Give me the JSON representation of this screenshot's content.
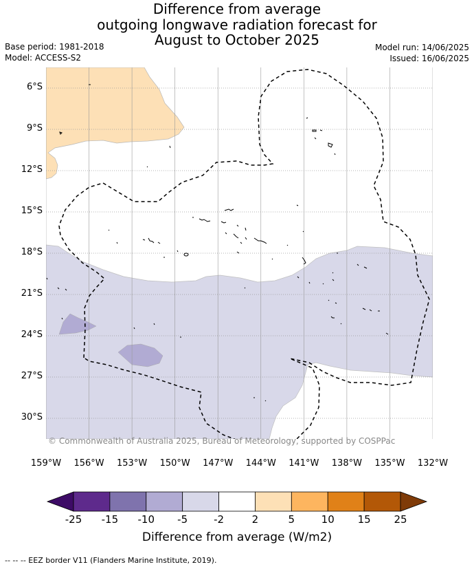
{
  "title": {
    "line1": "Difference from average",
    "line2": "outgoing longwave radiation forecast for",
    "line3": "August to October 2025"
  },
  "meta": {
    "base_period": "Base period: 1981-2018",
    "model": "Model: ACCESS-S2",
    "model_run": "Model run: 14/06/2025",
    "issued": "Issued: 16/06/2025"
  },
  "map": {
    "lat_labels": [
      "6°S",
      "9°S",
      "12°S",
      "15°S",
      "18°S",
      "21°S",
      "24°S",
      "27°S",
      "30°S"
    ],
    "lon_labels": [
      "159°W",
      "156°W",
      "153°W",
      "150°W",
      "147°W",
      "144°W",
      "141°W",
      "138°W",
      "135°W",
      "132°W"
    ],
    "lat_range": [
      -31.5,
      -4.5
    ],
    "lon_range": [
      -159,
      -132
    ],
    "copyright": "© Commonwealth of Australia 2025, Bureau of Meteorology, supported by COSPPac",
    "colors": {
      "positive_2_5": "#fde0b6",
      "negative_5_2": "#d8d8e9",
      "negative_10_5": "#b1abd3",
      "coastline": "#000000",
      "eez_border": "#000000",
      "gridline": "#999999"
    }
  },
  "colorbar": {
    "ticks": [
      "-25",
      "-15",
      "-10",
      "-5",
      "-2",
      "2",
      "5",
      "10",
      "15",
      "25"
    ],
    "colors": [
      "#3d0b66",
      "#5e2a8c",
      "#7f73ad",
      "#b1abd3",
      "#d8d8e9",
      "#ffffff",
      "#fde0b6",
      "#fdb55f",
      "#e08118",
      "#b35807",
      "#7f3b08"
    ],
    "title": "Difference from average (W/m2)"
  },
  "footnote": "--  --  -- EEZ border V11 (Flanders Marine Institute, 2019)."
}
